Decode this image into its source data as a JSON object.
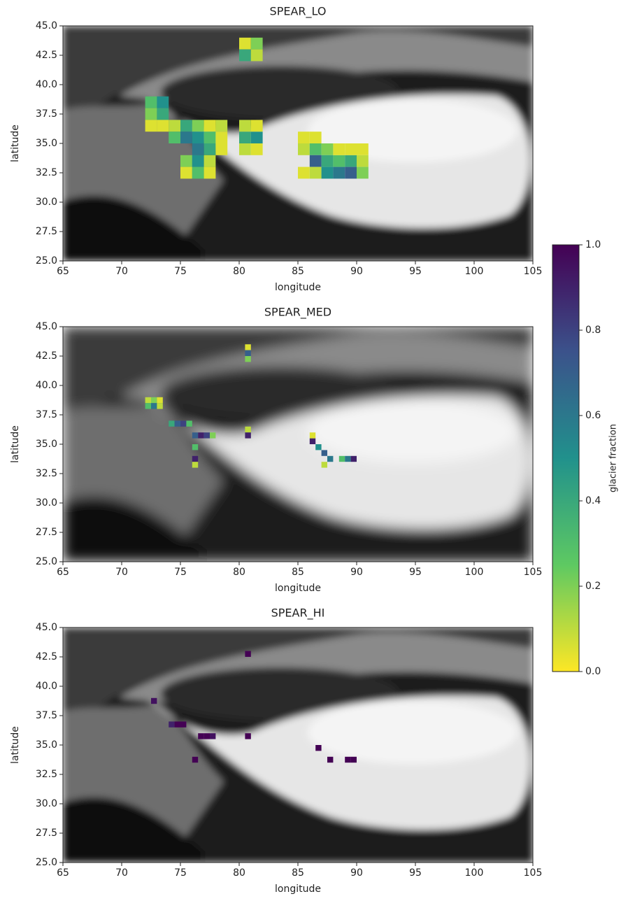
{
  "chart_data": [
    {
      "type": "heatmap",
      "title": "SPEAR_LO",
      "xlabel": "longitude",
      "ylabel": "latitude",
      "xlim": [
        65,
        105
      ],
      "ylim": [
        25,
        45
      ],
      "xticks": [
        65,
        70,
        75,
        80,
        85,
        90,
        95,
        100,
        105
      ],
      "yticks": [
        {
          "value": 25,
          "label": "25.0"
        },
        {
          "value": 27.5,
          "label": "27.5"
        },
        {
          "value": 30,
          "label": "30.0"
        },
        {
          "value": 32.5,
          "label": "32.5"
        },
        {
          "value": 35,
          "label": "35.0"
        },
        {
          "value": 37.5,
          "label": "37.5"
        },
        {
          "value": 40,
          "label": "40.0"
        },
        {
          "value": 42.5,
          "label": "42.5"
        },
        {
          "value": 45,
          "label": "45.0"
        }
      ],
      "resolution": 1,
      "cells": {
        "x": [
          80.5,
          81.5,
          80.5,
          81.5,
          72.5,
          73.5,
          72.5,
          73.5,
          72.5,
          73.5,
          74.5,
          75.5,
          76.5,
          77.5,
          74.5,
          75.5,
          76.5,
          77.5,
          76.5,
          77.5,
          75.5,
          76.5,
          77.5,
          75.5,
          76.5,
          77.5,
          78.5,
          78.5,
          78.5,
          80.5,
          81.5,
          80.5,
          81.5,
          80.5,
          81.5,
          85.5,
          86.5,
          85.5,
          86.5,
          87.5,
          86.5,
          87.5,
          88.5,
          89.5,
          90.5,
          86.5,
          87.5,
          88.5,
          89.5,
          90.5,
          85.5,
          88.5,
          89.5,
          90.5
        ],
        "y": [
          43.5,
          43.5,
          42.5,
          42.5,
          38.5,
          38.5,
          37.5,
          37.5,
          36.5,
          36.5,
          36.5,
          36.5,
          36.5,
          36.5,
          35.5,
          35.5,
          35.5,
          35.5,
          34.5,
          34.5,
          33.5,
          33.5,
          33.5,
          32.5,
          32.5,
          32.5,
          35.5,
          34.5,
          36.5,
          35.5,
          35.5,
          34.5,
          34.5,
          36.5,
          36.5,
          35.5,
          35.5,
          34.5,
          34.5,
          34.5,
          33.5,
          33.5,
          33.5,
          33.5,
          33.5,
          32.5,
          32.5,
          32.5,
          32.5,
          32.5,
          32.5,
          34.5,
          34.5,
          34.5
        ],
        "values": [
          0.05,
          0.2,
          0.4,
          0.1,
          0.3,
          0.5,
          0.2,
          0.4,
          0.05,
          0.05,
          0.1,
          0.4,
          0.2,
          0.05,
          0.3,
          0.6,
          0.5,
          0.3,
          0.6,
          0.4,
          0.2,
          0.5,
          0.1,
          0.05,
          0.3,
          0.05,
          0.05,
          0.05,
          0.1,
          0.4,
          0.5,
          0.1,
          0.05,
          0.1,
          0.05,
          0.05,
          0.05,
          0.1,
          0.3,
          0.2,
          0.7,
          0.4,
          0.3,
          0.4,
          0.1,
          0.1,
          0.5,
          0.6,
          0.7,
          0.2,
          0.05,
          0.05,
          0.05,
          0.05
        ]
      }
    },
    {
      "type": "heatmap",
      "title": "SPEAR_MED",
      "xlabel": "longitude",
      "ylabel": "latitude",
      "xlim": [
        65,
        105
      ],
      "ylim": [
        25,
        45
      ],
      "xticks": [
        65,
        70,
        75,
        80,
        85,
        90,
        95,
        100,
        105
      ],
      "yticks": [
        {
          "value": 25,
          "label": "25.0"
        },
        {
          "value": 27.5,
          "label": "27.5"
        },
        {
          "value": 30,
          "label": "30.0"
        },
        {
          "value": 32.5,
          "label": "32.5"
        },
        {
          "value": 35,
          "label": "35.0"
        },
        {
          "value": 37.5,
          "label": "37.5"
        },
        {
          "value": 40,
          "label": "40.0"
        },
        {
          "value": 42.5,
          "label": "42.5"
        },
        {
          "value": 45,
          "label": "45.0"
        }
      ],
      "resolution": 0.5,
      "cells": {
        "x": [
          80.75,
          80.75,
          80.75,
          72.25,
          72.75,
          72.25,
          72.75,
          73.25,
          73.25,
          74.25,
          74.75,
          75.25,
          75.75,
          76.25,
          76.75,
          77.25,
          77.75,
          76.25,
          76.25,
          76.25,
          80.75,
          80.75,
          86.25,
          86.75,
          87.25,
          87.75,
          88.75,
          89.25,
          89.75,
          86.25,
          87.25
        ],
        "y": [
          43.25,
          42.75,
          42.25,
          38.75,
          38.75,
          38.25,
          38.25,
          38.75,
          38.25,
          36.75,
          36.75,
          36.75,
          36.75,
          35.75,
          35.75,
          35.75,
          35.75,
          34.75,
          33.75,
          33.25,
          36.25,
          35.75,
          35.25,
          34.75,
          34.25,
          33.75,
          33.75,
          33.75,
          33.75,
          35.75,
          33.25
        ],
        "values": [
          0.05,
          0.7,
          0.2,
          0.1,
          0.2,
          0.3,
          0.6,
          0.05,
          0.1,
          0.4,
          0.7,
          0.8,
          0.3,
          0.7,
          0.9,
          0.8,
          0.2,
          0.3,
          0.9,
          0.1,
          0.1,
          0.9,
          0.9,
          0.5,
          0.7,
          0.6,
          0.3,
          0.6,
          0.9,
          0.05,
          0.1
        ]
      }
    },
    {
      "type": "heatmap",
      "title": "SPEAR_HI",
      "xlabel": "longitude",
      "ylabel": "latitude",
      "xlim": [
        65,
        105
      ],
      "ylim": [
        25,
        45
      ],
      "xticks": [
        65,
        70,
        75,
        80,
        85,
        90,
        95,
        100,
        105
      ],
      "yticks": [
        {
          "value": 25,
          "label": "25.0"
        },
        {
          "value": 27.5,
          "label": "27.5"
        },
        {
          "value": 30,
          "label": "30.0"
        },
        {
          "value": 32.5,
          "label": "32.5"
        },
        {
          "value": 35,
          "label": "35.0"
        },
        {
          "value": 37.5,
          "label": "37.5"
        },
        {
          "value": 40,
          "label": "40.0"
        },
        {
          "value": 42.5,
          "label": "42.5"
        },
        {
          "value": 45,
          "label": "45.0"
        }
      ],
      "resolution": 0.5,
      "cells": {
        "x": [
          80.75,
          72.75,
          74.25,
          74.75,
          75.25,
          76.75,
          77.25,
          77.75,
          80.75,
          76.25,
          86.75,
          87.75,
          89.25,
          89.75
        ],
        "y": [
          42.75,
          38.75,
          36.75,
          36.75,
          36.75,
          35.75,
          35.75,
          35.75,
          35.75,
          33.75,
          34.75,
          33.75,
          33.75,
          33.75
        ],
        "values": [
          1,
          0.95,
          0.9,
          1,
          1,
          1,
          1,
          0.95,
          1,
          1,
          1,
          1,
          1,
          1
        ]
      }
    }
  ],
  "colorbar": {
    "label": "glacier fraction",
    "colormap": "viridis_r",
    "lim": [
      0,
      1
    ],
    "ticks": [
      {
        "value": 0,
        "label": "0.0"
      },
      {
        "value": 0.2,
        "label": "0.2"
      },
      {
        "value": 0.4,
        "label": "0.4"
      },
      {
        "value": 0.6,
        "label": "0.6"
      },
      {
        "value": 0.8,
        "label": "0.8"
      },
      {
        "value": 1,
        "label": "1.0"
      }
    ]
  }
}
